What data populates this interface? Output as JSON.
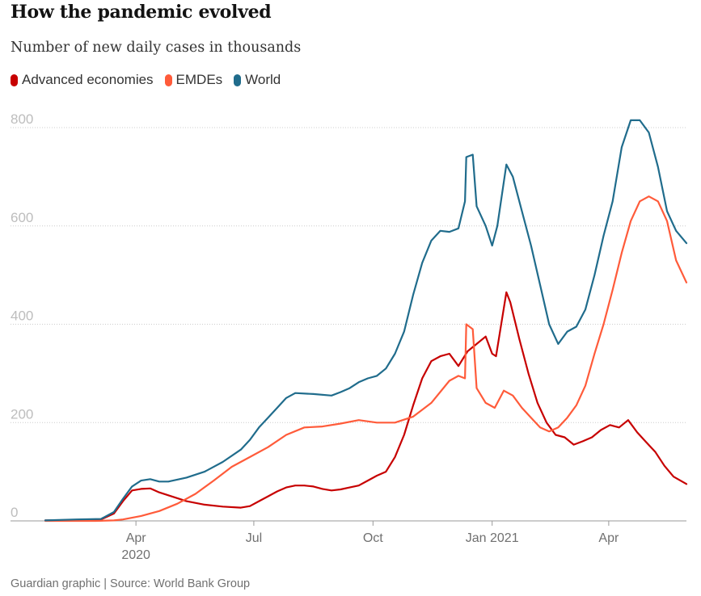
{
  "header": {
    "title": "How the pandemic evolved",
    "subtitle": "Number of new daily cases in thousands"
  },
  "footer": {
    "source": "Guardian graphic | Source: World Bank Group"
  },
  "chart_data": {
    "type": "line",
    "ylim": [
      0,
      800
    ],
    "y_ticks": [
      0,
      200,
      400,
      600,
      800
    ],
    "grid": "horizontal-dotted",
    "legend_position": "top-left",
    "x_ticks": [
      {
        "date": "2020-04-01",
        "label": "Apr",
        "sublabel": "2020"
      },
      {
        "date": "2020-07-01",
        "label": "Jul",
        "sublabel": ""
      },
      {
        "date": "2020-10-01",
        "label": "Oct",
        "sublabel": ""
      },
      {
        "date": "2021-01-01",
        "label": "Jan 2021",
        "sublabel": ""
      },
      {
        "date": "2021-04-01",
        "label": "Apr",
        "sublabel": ""
      }
    ],
    "x_range": [
      "2020-01-22",
      "2021-05-31"
    ],
    "series": [
      {
        "name": "Advanced economies",
        "color": "#c70000",
        "points": [
          [
            "2020-01-22",
            1
          ],
          [
            "2020-02-15",
            2
          ],
          [
            "2020-03-05",
            3
          ],
          [
            "2020-03-15",
            15
          ],
          [
            "2020-03-22",
            40
          ],
          [
            "2020-03-29",
            62
          ],
          [
            "2020-04-05",
            65
          ],
          [
            "2020-04-12",
            66
          ],
          [
            "2020-04-19",
            58
          ],
          [
            "2020-04-26",
            52
          ],
          [
            "2020-05-10",
            40
          ],
          [
            "2020-05-24",
            33
          ],
          [
            "2020-06-07",
            29
          ],
          [
            "2020-06-21",
            27
          ],
          [
            "2020-06-28",
            30
          ],
          [
            "2020-07-05",
            40
          ],
          [
            "2020-07-12",
            50
          ],
          [
            "2020-07-19",
            60
          ],
          [
            "2020-07-26",
            68
          ],
          [
            "2020-08-02",
            72
          ],
          [
            "2020-08-09",
            72
          ],
          [
            "2020-08-16",
            70
          ],
          [
            "2020-08-23",
            65
          ],
          [
            "2020-08-30",
            62
          ],
          [
            "2020-09-06",
            64
          ],
          [
            "2020-09-13",
            68
          ],
          [
            "2020-09-20",
            72
          ],
          [
            "2020-09-27",
            82
          ],
          [
            "2020-10-04",
            92
          ],
          [
            "2020-10-11",
            100
          ],
          [
            "2020-10-18",
            130
          ],
          [
            "2020-10-25",
            175
          ],
          [
            "2020-11-01",
            235
          ],
          [
            "2020-11-08",
            290
          ],
          [
            "2020-11-15",
            325
          ],
          [
            "2020-11-22",
            335
          ],
          [
            "2020-11-29",
            340
          ],
          [
            "2020-12-06",
            315
          ],
          [
            "2020-12-13",
            345
          ],
          [
            "2020-12-20",
            360
          ],
          [
            "2020-12-27",
            375
          ],
          [
            "2021-01-01",
            340
          ],
          [
            "2021-01-04",
            335
          ],
          [
            "2021-01-08",
            400
          ],
          [
            "2021-01-12",
            465
          ],
          [
            "2021-01-15",
            445
          ],
          [
            "2021-01-22",
            370
          ],
          [
            "2021-01-29",
            300
          ],
          [
            "2021-02-05",
            240
          ],
          [
            "2021-02-12",
            200
          ],
          [
            "2021-02-19",
            175
          ],
          [
            "2021-02-26",
            170
          ],
          [
            "2021-03-05",
            155
          ],
          [
            "2021-03-12",
            162
          ],
          [
            "2021-03-19",
            170
          ],
          [
            "2021-03-26",
            185
          ],
          [
            "2021-04-02",
            195
          ],
          [
            "2021-04-09",
            190
          ],
          [
            "2021-04-16",
            205
          ],
          [
            "2021-04-23",
            180
          ],
          [
            "2021-04-30",
            160
          ],
          [
            "2021-05-07",
            140
          ],
          [
            "2021-05-14",
            112
          ],
          [
            "2021-05-21",
            90
          ],
          [
            "2021-05-31",
            75
          ]
        ]
      },
      {
        "name": "EMDEs",
        "color": "#ff5b3a",
        "points": [
          [
            "2020-01-22",
            0
          ],
          [
            "2020-03-01",
            0
          ],
          [
            "2020-03-15",
            1
          ],
          [
            "2020-03-22",
            3
          ],
          [
            "2020-04-05",
            10
          ],
          [
            "2020-04-19",
            20
          ],
          [
            "2020-05-03",
            35
          ],
          [
            "2020-05-17",
            55
          ],
          [
            "2020-05-31",
            82
          ],
          [
            "2020-06-14",
            110
          ],
          [
            "2020-06-28",
            130
          ],
          [
            "2020-07-12",
            150
          ],
          [
            "2020-07-26",
            175
          ],
          [
            "2020-08-09",
            190
          ],
          [
            "2020-08-23",
            192
          ],
          [
            "2020-09-06",
            198
          ],
          [
            "2020-09-20",
            205
          ],
          [
            "2020-10-04",
            200
          ],
          [
            "2020-10-18",
            200
          ],
          [
            "2020-11-01",
            212
          ],
          [
            "2020-11-15",
            240
          ],
          [
            "2020-11-29",
            285
          ],
          [
            "2020-12-06",
            295
          ],
          [
            "2020-12-11",
            290
          ],
          [
            "2020-12-12",
            400
          ],
          [
            "2020-12-17",
            390
          ],
          [
            "2020-12-20",
            270
          ],
          [
            "2020-12-27",
            240
          ],
          [
            "2021-01-03",
            230
          ],
          [
            "2021-01-10",
            265
          ],
          [
            "2021-01-17",
            255
          ],
          [
            "2021-01-24",
            230
          ],
          [
            "2021-01-31",
            210
          ],
          [
            "2021-02-07",
            190
          ],
          [
            "2021-02-14",
            182
          ],
          [
            "2021-02-21",
            190
          ],
          [
            "2021-02-28",
            210
          ],
          [
            "2021-03-07",
            235
          ],
          [
            "2021-03-14",
            275
          ],
          [
            "2021-03-21",
            340
          ],
          [
            "2021-03-28",
            400
          ],
          [
            "2021-04-04",
            470
          ],
          [
            "2021-04-11",
            545
          ],
          [
            "2021-04-18",
            610
          ],
          [
            "2021-04-25",
            650
          ],
          [
            "2021-05-02",
            660
          ],
          [
            "2021-05-09",
            650
          ],
          [
            "2021-05-16",
            610
          ],
          [
            "2021-05-23",
            530
          ],
          [
            "2021-05-31",
            485
          ]
        ]
      },
      {
        "name": "World",
        "color": "#206c8c",
        "points": [
          [
            "2020-01-22",
            1
          ],
          [
            "2020-02-15",
            3
          ],
          [
            "2020-03-05",
            4
          ],
          [
            "2020-03-15",
            18
          ],
          [
            "2020-03-22",
            45
          ],
          [
            "2020-03-29",
            70
          ],
          [
            "2020-04-05",
            82
          ],
          [
            "2020-04-12",
            85
          ],
          [
            "2020-04-19",
            80
          ],
          [
            "2020-04-26",
            80
          ],
          [
            "2020-05-10",
            88
          ],
          [
            "2020-05-24",
            100
          ],
          [
            "2020-06-07",
            120
          ],
          [
            "2020-06-21",
            145
          ],
          [
            "2020-06-28",
            165
          ],
          [
            "2020-07-05",
            190
          ],
          [
            "2020-07-12",
            210
          ],
          [
            "2020-07-19",
            230
          ],
          [
            "2020-07-26",
            250
          ],
          [
            "2020-08-02",
            260
          ],
          [
            "2020-08-16",
            258
          ],
          [
            "2020-08-30",
            255
          ],
          [
            "2020-09-06",
            262
          ],
          [
            "2020-09-13",
            270
          ],
          [
            "2020-09-20",
            282
          ],
          [
            "2020-09-27",
            290
          ],
          [
            "2020-10-04",
            295
          ],
          [
            "2020-10-11",
            310
          ],
          [
            "2020-10-18",
            340
          ],
          [
            "2020-10-25",
            385
          ],
          [
            "2020-11-01",
            460
          ],
          [
            "2020-11-08",
            525
          ],
          [
            "2020-11-15",
            570
          ],
          [
            "2020-11-22",
            590
          ],
          [
            "2020-11-29",
            588
          ],
          [
            "2020-12-06",
            595
          ],
          [
            "2020-12-11",
            650
          ],
          [
            "2020-12-12",
            740
          ],
          [
            "2020-12-17",
            745
          ],
          [
            "2020-12-20",
            640
          ],
          [
            "2020-12-27",
            600
          ],
          [
            "2021-01-01",
            560
          ],
          [
            "2021-01-05",
            600
          ],
          [
            "2021-01-12",
            725
          ],
          [
            "2021-01-17",
            700
          ],
          [
            "2021-01-24",
            630
          ],
          [
            "2021-01-31",
            560
          ],
          [
            "2021-02-07",
            480
          ],
          [
            "2021-02-14",
            400
          ],
          [
            "2021-02-21",
            360
          ],
          [
            "2021-02-28",
            385
          ],
          [
            "2021-03-07",
            395
          ],
          [
            "2021-03-14",
            430
          ],
          [
            "2021-03-21",
            500
          ],
          [
            "2021-03-28",
            580
          ],
          [
            "2021-04-04",
            650
          ],
          [
            "2021-04-11",
            760
          ],
          [
            "2021-04-18",
            815
          ],
          [
            "2021-04-25",
            815
          ],
          [
            "2021-05-02",
            790
          ],
          [
            "2021-05-09",
            720
          ],
          [
            "2021-05-16",
            630
          ],
          [
            "2021-05-23",
            590
          ],
          [
            "2021-05-31",
            565
          ]
        ]
      }
    ]
  }
}
